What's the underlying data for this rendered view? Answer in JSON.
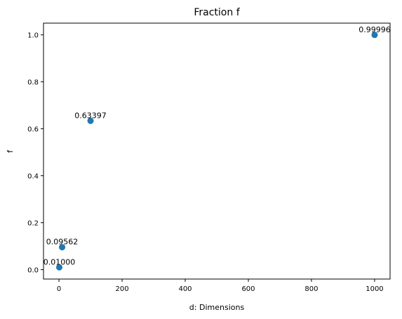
{
  "chart_data": {
    "type": "scatter",
    "title": "Fraction f",
    "xlabel": "d: Dimensions",
    "ylabel": "f",
    "x": [
      1,
      10,
      100,
      1000
    ],
    "y": [
      0.01,
      0.09562,
      0.63397,
      0.99996
    ],
    "point_labels": [
      "0.01000",
      "0.09562",
      "0.63397",
      "0.99996"
    ],
    "xlim": [
      -49,
      1049
    ],
    "ylim": [
      -0.04,
      1.05
    ],
    "xticks": [
      0,
      200,
      400,
      600,
      800,
      1000
    ],
    "xtick_labels": [
      "0",
      "200",
      "400",
      "600",
      "800",
      "1000"
    ],
    "yticks": [
      0.0,
      0.2,
      0.4,
      0.6,
      0.8,
      1.0
    ],
    "ytick_labels": [
      "0.0",
      "0.2",
      "0.4",
      "0.6",
      "0.8",
      "1.0"
    ],
    "grid": false,
    "marker_color": "#1f77b4"
  }
}
